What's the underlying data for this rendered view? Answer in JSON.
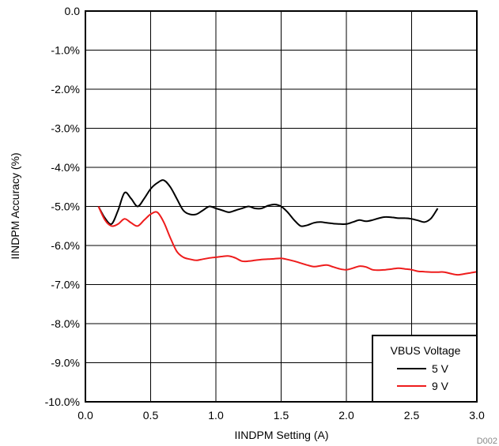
{
  "chart_data": {
    "type": "line",
    "xlabel": "IINDPM Setting (A)",
    "ylabel": "IINDPM Accuracy (%)",
    "xlim": [
      0,
      3.0
    ],
    "ylim": [
      -10.0,
      0.0
    ],
    "x_ticks": [
      "0.0",
      "0.5",
      "1.0",
      "1.5",
      "2.0",
      "2.5",
      "3.0"
    ],
    "y_ticks": [
      "0.0",
      "-1.0%",
      "-2.0%",
      "-3.0%",
      "-4.0%",
      "-5.0%",
      "-6.0%",
      "-7.0%",
      "-8.0%",
      "-9.0%",
      "-10.0%"
    ],
    "grid": true,
    "legend": {
      "title": "VBUS Voltage",
      "placement": "bottom-right"
    },
    "series": [
      {
        "name": "5 V",
        "color": "#000000",
        "x": [
          0.1,
          0.15,
          0.2,
          0.25,
          0.3,
          0.35,
          0.4,
          0.45,
          0.5,
          0.55,
          0.6,
          0.65,
          0.7,
          0.75,
          0.8,
          0.85,
          0.9,
          0.95,
          1.0,
          1.05,
          1.1,
          1.15,
          1.2,
          1.25,
          1.3,
          1.35,
          1.4,
          1.45,
          1.5,
          1.55,
          1.6,
          1.65,
          1.7,
          1.75,
          1.8,
          1.85,
          1.9,
          1.95,
          2.0,
          2.05,
          2.1,
          2.15,
          2.2,
          2.25,
          2.3,
          2.35,
          2.4,
          2.45,
          2.5,
          2.55,
          2.6,
          2.65,
          2.7
        ],
        "values": [
          -5.0,
          -5.3,
          -5.45,
          -5.1,
          -4.65,
          -4.8,
          -5.0,
          -4.8,
          -4.55,
          -4.4,
          -4.33,
          -4.5,
          -4.8,
          -5.1,
          -5.2,
          -5.2,
          -5.1,
          -5.0,
          -5.05,
          -5.1,
          -5.15,
          -5.1,
          -5.05,
          -5.0,
          -5.05,
          -5.05,
          -4.98,
          -4.95,
          -5.0,
          -5.15,
          -5.35,
          -5.5,
          -5.48,
          -5.42,
          -5.4,
          -5.42,
          -5.44,
          -5.45,
          -5.45,
          -5.4,
          -5.35,
          -5.38,
          -5.35,
          -5.3,
          -5.27,
          -5.28,
          -5.3,
          -5.3,
          -5.32,
          -5.36,
          -5.4,
          -5.3,
          -5.05
        ]
      },
      {
        "name": "9 V",
        "color": "#ee1c1c",
        "x": [
          0.1,
          0.15,
          0.2,
          0.25,
          0.3,
          0.35,
          0.4,
          0.45,
          0.5,
          0.55,
          0.6,
          0.65,
          0.7,
          0.75,
          0.8,
          0.85,
          0.9,
          0.95,
          1.0,
          1.05,
          1.1,
          1.15,
          1.2,
          1.25,
          1.3,
          1.35,
          1.4,
          1.45,
          1.5,
          1.55,
          1.6,
          1.65,
          1.7,
          1.75,
          1.8,
          1.85,
          1.9,
          1.95,
          2.0,
          2.05,
          2.1,
          2.15,
          2.2,
          2.25,
          2.3,
          2.35,
          2.4,
          2.45,
          2.5,
          2.55,
          2.6,
          2.65,
          2.7,
          2.75,
          2.8,
          2.85,
          2.9,
          2.95,
          3.0
        ],
        "values": [
          -5.0,
          -5.35,
          -5.5,
          -5.45,
          -5.32,
          -5.42,
          -5.5,
          -5.35,
          -5.2,
          -5.15,
          -5.4,
          -5.8,
          -6.15,
          -6.3,
          -6.35,
          -6.38,
          -6.35,
          -6.32,
          -6.3,
          -6.28,
          -6.27,
          -6.32,
          -6.4,
          -6.4,
          -6.38,
          -6.36,
          -6.35,
          -6.34,
          -6.33,
          -6.36,
          -6.4,
          -6.45,
          -6.5,
          -6.54,
          -6.52,
          -6.5,
          -6.55,
          -6.6,
          -6.62,
          -6.58,
          -6.53,
          -6.55,
          -6.62,
          -6.63,
          -6.62,
          -6.6,
          -6.58,
          -6.6,
          -6.62,
          -6.66,
          -6.67,
          -6.68,
          -6.68,
          -6.68,
          -6.72,
          -6.75,
          -6.73,
          -6.7,
          -6.67
        ]
      }
    ],
    "annotations": [
      "D002"
    ]
  }
}
